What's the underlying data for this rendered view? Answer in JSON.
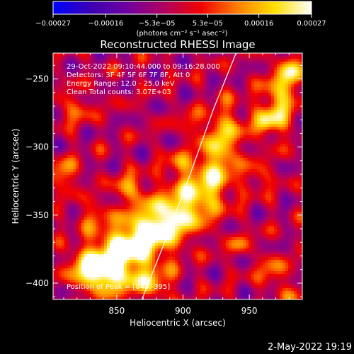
{
  "chart_data": {
    "type": "heatmap",
    "title": "Reconstructed RHESSI Image",
    "xlabel": "Heliocentric X (arcsec)",
    "ylabel": "Heliocentric Y (arcsec)",
    "xlim": [
      802,
      990
    ],
    "ylim": [
      -412,
      -231
    ],
    "x_ticks": [
      850,
      900,
      950
    ],
    "y_ticks": [
      -250,
      -300,
      -350,
      -400
    ],
    "x_tick_labels": [
      "850",
      "900",
      "950"
    ],
    "y_tick_labels": [
      "−250",
      "−300",
      "−350",
      "−400"
    ],
    "colorbar": {
      "range": [
        -0.00027,
        0.00027
      ],
      "ticks": [
        -0.00027,
        -0.00016,
        -5.3e-05,
        5.3e-05,
        0.00016,
        0.00027
      ],
      "tick_labels": [
        "−0.00027",
        "−0.00016",
        "−5.3e−05",
        "5.3e−05",
        "0.00016",
        "0.00027"
      ],
      "label": "(photons cm⁻² s⁻¹ asec⁻²)",
      "colors": [
        "#0000ff",
        "#3a00b4",
        "#7000a0",
        "#b00060",
        "#f00000",
        "#ff8000",
        "#ffe000",
        "#ffffff"
      ]
    },
    "annotations": [
      "29-Oct-2022 09:10:44.000 to 09:16:28.000",
      "Detectors: 3F 4F 5F 6F 7F 8F, Att 0",
      "Energy Range: 12.0 - 25.0 keV",
      "Clean    Total counts: 3.07E+03",
      "Position of Peak = [843,-395]"
    ],
    "peak": {
      "x": 843,
      "y": -395
    },
    "limb_curve": {
      "x": [
        869,
        887,
        905,
        923,
        940
      ],
      "y": [
        -412,
        -368,
        -321,
        -272,
        -231
      ]
    },
    "sources": [
      {
        "x": 862,
        "y": -372,
        "sx": 18,
        "sy": 12,
        "amp": 0.00023
      },
      {
        "x": 880,
        "y": -358,
        "sx": 16,
        "sy": 11,
        "amp": 0.00022
      },
      {
        "x": 898,
        "y": -346,
        "sx": 16,
        "sy": 11,
        "amp": 0.00019
      },
      {
        "x": 915,
        "y": -330,
        "sx": 14,
        "sy": 12,
        "amp": 0.00018
      },
      {
        "x": 926,
        "y": -308,
        "sx": 11,
        "sy": 14,
        "amp": 0.00017
      },
      {
        "x": 933,
        "y": -285,
        "sx": 10,
        "sy": 13,
        "amp": 0.00014
      },
      {
        "x": 843,
        "y": -395,
        "sx": 13,
        "sy": 9,
        "amp": 0.00027
      },
      {
        "x": 828,
        "y": -388,
        "sx": 10,
        "sy": 9,
        "amp": 0.0002
      },
      {
        "x": 875,
        "y": -400,
        "sx": 12,
        "sy": 8,
        "amp": 0.00018
      },
      {
        "x": 852,
        "y": -378,
        "sx": 14,
        "sy": 8,
        "amp": 0.00016
      },
      {
        "x": 860,
        "y": -330,
        "sx": 8,
        "sy": 7,
        "amp": 0.00017
      },
      {
        "x": 832,
        "y": -350,
        "sx": 8,
        "sy": 7,
        "amp": 0.00011
      },
      {
        "x": 896,
        "y": -313,
        "sx": 7,
        "sy": 6,
        "amp": 0.00013
      },
      {
        "x": 906,
        "y": -283,
        "sx": 6,
        "sy": 6,
        "amp": 0.0001
      },
      {
        "x": 972,
        "y": -268,
        "sx": 9,
        "sy": 15,
        "amp": 0.00021
      },
      {
        "x": 982,
        "y": -245,
        "sx": 7,
        "sy": 9,
        "amp": 0.0002
      },
      {
        "x": 962,
        "y": -282,
        "sx": 6,
        "sy": 6,
        "amp": 0.00018
      },
      {
        "x": 958,
        "y": -322,
        "sx": 7,
        "sy": 7,
        "amp": 0.00011
      },
      {
        "x": 942,
        "y": -372,
        "sx": 7,
        "sy": 6,
        "amp": 0.0001
      },
      {
        "x": 968,
        "y": -392,
        "sx": 8,
        "sy": 8,
        "amp": 0.00013
      },
      {
        "x": 985,
        "y": -410,
        "sx": 6,
        "sy": 6,
        "amp": 9e-05
      },
      {
        "x": 818,
        "y": -272,
        "sx": 10,
        "sy": 8,
        "amp": 0.00011
      },
      {
        "x": 810,
        "y": -320,
        "sx": 8,
        "sy": 8,
        "amp": 0.00015
      }
    ]
  },
  "footer": {
    "timestamp": "2-May-2022 19:19"
  }
}
